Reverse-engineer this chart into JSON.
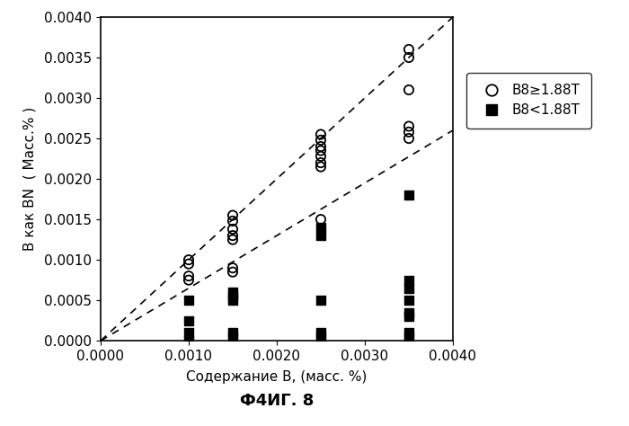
{
  "title": "Ф4ИГ. 8",
  "xlabel": "Содержание B, (масс. %)",
  "ylabel": "B как BN  ( Масс.% )",
  "xlim": [
    0.0,
    0.004
  ],
  "ylim": [
    0.0,
    0.004
  ],
  "xticks": [
    0.0,
    0.001,
    0.002,
    0.003,
    0.004
  ],
  "yticks": [
    0.0,
    0.0005,
    0.001,
    0.0015,
    0.002,
    0.0025,
    0.003,
    0.0035,
    0.004
  ],
  "circle_points": [
    [
      0.001,
      0.001
    ],
    [
      0.001,
      0.00095
    ],
    [
      0.001,
      0.0008
    ],
    [
      0.001,
      0.00075
    ],
    [
      0.0015,
      0.00155
    ],
    [
      0.0015,
      0.00148
    ],
    [
      0.0015,
      0.00138
    ],
    [
      0.0015,
      0.0013
    ],
    [
      0.0015,
      0.00125
    ],
    [
      0.0015,
      0.0009
    ],
    [
      0.0015,
      0.00085
    ],
    [
      0.0025,
      0.00255
    ],
    [
      0.0025,
      0.00248
    ],
    [
      0.0025,
      0.0024
    ],
    [
      0.0025,
      0.00235
    ],
    [
      0.0025,
      0.00228
    ],
    [
      0.0025,
      0.0022
    ],
    [
      0.0025,
      0.00215
    ],
    [
      0.0025,
      0.0015
    ],
    [
      0.0035,
      0.0036
    ],
    [
      0.0035,
      0.0035
    ],
    [
      0.0035,
      0.0031
    ],
    [
      0.0035,
      0.00265
    ],
    [
      0.0035,
      0.00258
    ],
    [
      0.0035,
      0.0025
    ]
  ],
  "square_points": [
    [
      0.001,
      0.0005
    ],
    [
      0.001,
      0.00025
    ],
    [
      0.001,
      0.0001
    ],
    [
      0.001,
      0.0
    ],
    [
      0.0015,
      0.0006
    ],
    [
      0.0015,
      0.00055
    ],
    [
      0.0015,
      0.0005
    ],
    [
      0.0015,
      0.0001
    ],
    [
      0.0015,
      5e-05
    ],
    [
      0.0025,
      0.0014
    ],
    [
      0.0025,
      0.0013
    ],
    [
      0.0025,
      0.0005
    ],
    [
      0.0025,
      0.0001
    ],
    [
      0.0025,
      5e-05
    ],
    [
      0.0035,
      0.0018
    ],
    [
      0.0035,
      0.00075
    ],
    [
      0.0035,
      0.00065
    ],
    [
      0.0035,
      0.0005
    ],
    [
      0.0035,
      0.00035
    ],
    [
      0.0035,
      0.0003
    ],
    [
      0.0035,
      0.0001
    ],
    [
      0.0035,
      5e-05
    ]
  ],
  "dashed_line1_x": [
    0.0,
    0.004
  ],
  "dashed_line1_y": [
    0.0,
    0.004
  ],
  "dashed_line2_x": [
    0.0,
    0.004
  ],
  "dashed_line2_y": [
    0.0,
    0.0026
  ],
  "legend_labels": [
    "B8≥1.88T",
    "B8<1.88T"
  ],
  "bg_color": "#ffffff",
  "marker_color": "#000000",
  "tick_fontsize": 11,
  "label_fontsize": 11,
  "title_fontsize": 13
}
